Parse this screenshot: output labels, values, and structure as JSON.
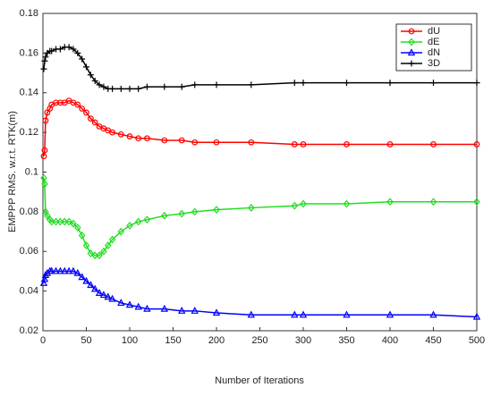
{
  "chart_data": {
    "type": "line",
    "x_label": "Number of Iterations",
    "y_label": "EMPPP RMS. w.r.t. RTK(m)",
    "x": [
      1,
      2,
      3,
      5,
      8,
      10,
      15,
      20,
      25,
      30,
      35,
      40,
      45,
      50,
      55,
      60,
      65,
      70,
      75,
      80,
      90,
      100,
      110,
      120,
      140,
      160,
      175,
      200,
      240,
      290,
      300,
      350,
      400,
      450,
      500
    ],
    "series": [
      {
        "name": "dU",
        "color": "#ff0000",
        "marker": "circle",
        "values": [
          0.108,
          0.111,
          0.126,
          0.13,
          0.132,
          0.134,
          0.135,
          0.135,
          0.135,
          0.136,
          0.135,
          0.134,
          0.132,
          0.13,
          0.127,
          0.125,
          0.123,
          0.122,
          0.121,
          0.12,
          0.119,
          0.118,
          0.117,
          0.117,
          0.116,
          0.116,
          0.115,
          0.115,
          0.115,
          0.114,
          0.114,
          0.114,
          0.114,
          0.114,
          0.114
        ]
      },
      {
        "name": "dE",
        "color": "#22dd22",
        "marker": "diamond",
        "values": [
          0.097,
          0.094,
          0.08,
          0.078,
          0.076,
          0.075,
          0.075,
          0.075,
          0.075,
          0.075,
          0.074,
          0.072,
          0.068,
          0.063,
          0.059,
          0.058,
          0.058,
          0.06,
          0.063,
          0.066,
          0.07,
          0.073,
          0.075,
          0.076,
          0.078,
          0.079,
          0.08,
          0.081,
          0.082,
          0.083,
          0.084,
          0.084,
          0.085,
          0.085,
          0.085
        ]
      },
      {
        "name": "dN",
        "color": "#0000ff",
        "marker": "triangle",
        "values": [
          0.044,
          0.046,
          0.048,
          0.049,
          0.05,
          0.05,
          0.05,
          0.05,
          0.05,
          0.05,
          0.05,
          0.049,
          0.047,
          0.045,
          0.043,
          0.041,
          0.039,
          0.038,
          0.037,
          0.036,
          0.034,
          0.033,
          0.032,
          0.031,
          0.031,
          0.03,
          0.03,
          0.029,
          0.028,
          0.028,
          0.028,
          0.028,
          0.028,
          0.028,
          0.027
        ]
      },
      {
        "name": "3D",
        "color": "#000000",
        "marker": "plus",
        "values": [
          0.152,
          0.156,
          0.158,
          0.16,
          0.161,
          0.161,
          0.162,
          0.162,
          0.163,
          0.163,
          0.162,
          0.16,
          0.157,
          0.153,
          0.149,
          0.146,
          0.144,
          0.143,
          0.142,
          0.142,
          0.142,
          0.142,
          0.142,
          0.143,
          0.143,
          0.143,
          0.144,
          0.144,
          0.144,
          0.145,
          0.145,
          0.145,
          0.145,
          0.145,
          0.145
        ]
      }
    ],
    "xlim": [
      0,
      500
    ],
    "xticks": [
      0,
      50,
      100,
      150,
      200,
      250,
      300,
      350,
      400,
      450,
      500
    ],
    "ylim": [
      0.02,
      0.18
    ],
    "yticks": [
      0.02,
      0.04,
      0.06,
      0.08,
      0.1,
      0.12,
      0.14,
      0.16,
      0.18
    ],
    "legend": "top-right"
  }
}
